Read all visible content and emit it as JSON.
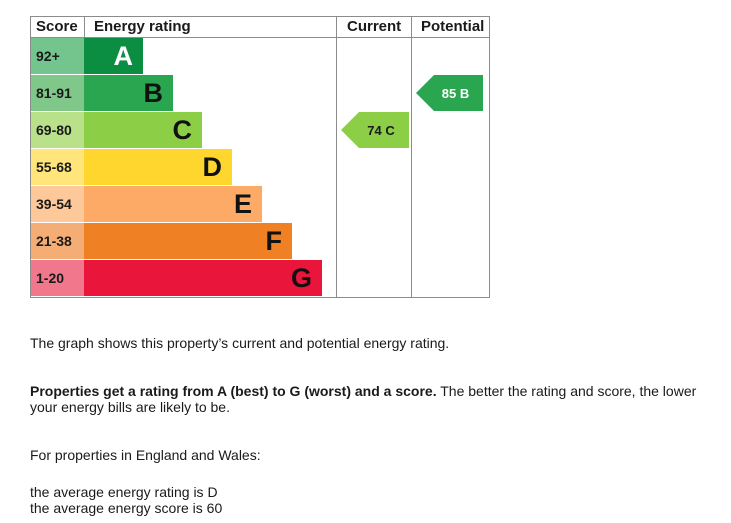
{
  "chart_data": {
    "type": "bar",
    "headers": {
      "score": "Score",
      "rating": "Energy rating",
      "current": "Current",
      "potential": "Potential"
    },
    "bands": [
      {
        "letter": "A",
        "range": "92+",
        "min": 92,
        "max": 100,
        "color": "#0c8e42",
        "score_bg": "#74c48e"
      },
      {
        "letter": "B",
        "range": "81-91",
        "min": 81,
        "max": 91,
        "color": "#2aa651",
        "score_bg": "#7fc88a"
      },
      {
        "letter": "C",
        "range": "69-80",
        "min": 69,
        "max": 80,
        "color": "#8cce46",
        "score_bg": "#b9e18a"
      },
      {
        "letter": "D",
        "range": "55-68",
        "min": 55,
        "max": 68,
        "color": "#ffd62e",
        "score_bg": "#ffe57a"
      },
      {
        "letter": "E",
        "range": "39-54",
        "min": 39,
        "max": 54,
        "color": "#fcaa65",
        "score_bg": "#fdc89a"
      },
      {
        "letter": "F",
        "range": "21-38",
        "min": 21,
        "max": 38,
        "color": "#ef8023",
        "score_bg": "#f4ae75"
      },
      {
        "letter": "G",
        "range": "1-20",
        "min": 1,
        "max": 20,
        "color": "#e9153b",
        "score_bg": "#f1788c"
      }
    ],
    "current": {
      "score": 74,
      "letter": "C",
      "label": "74 C",
      "color": "#8cce46"
    },
    "potential": {
      "score": 85,
      "letter": "B",
      "label": "85 B",
      "color": "#2aa651"
    }
  },
  "text": {
    "intro": "The graph shows this property’s current and potential energy rating.",
    "rating_bold": "Properties get a rating from A (best) to G (worst) and a score.",
    "rating_rest": " The better the rating and score, the lower your energy bills are likely to be.",
    "region": "For properties in England and Wales:",
    "avg_rating": "the average energy rating is D",
    "avg_score": "the average energy score is 60"
  }
}
